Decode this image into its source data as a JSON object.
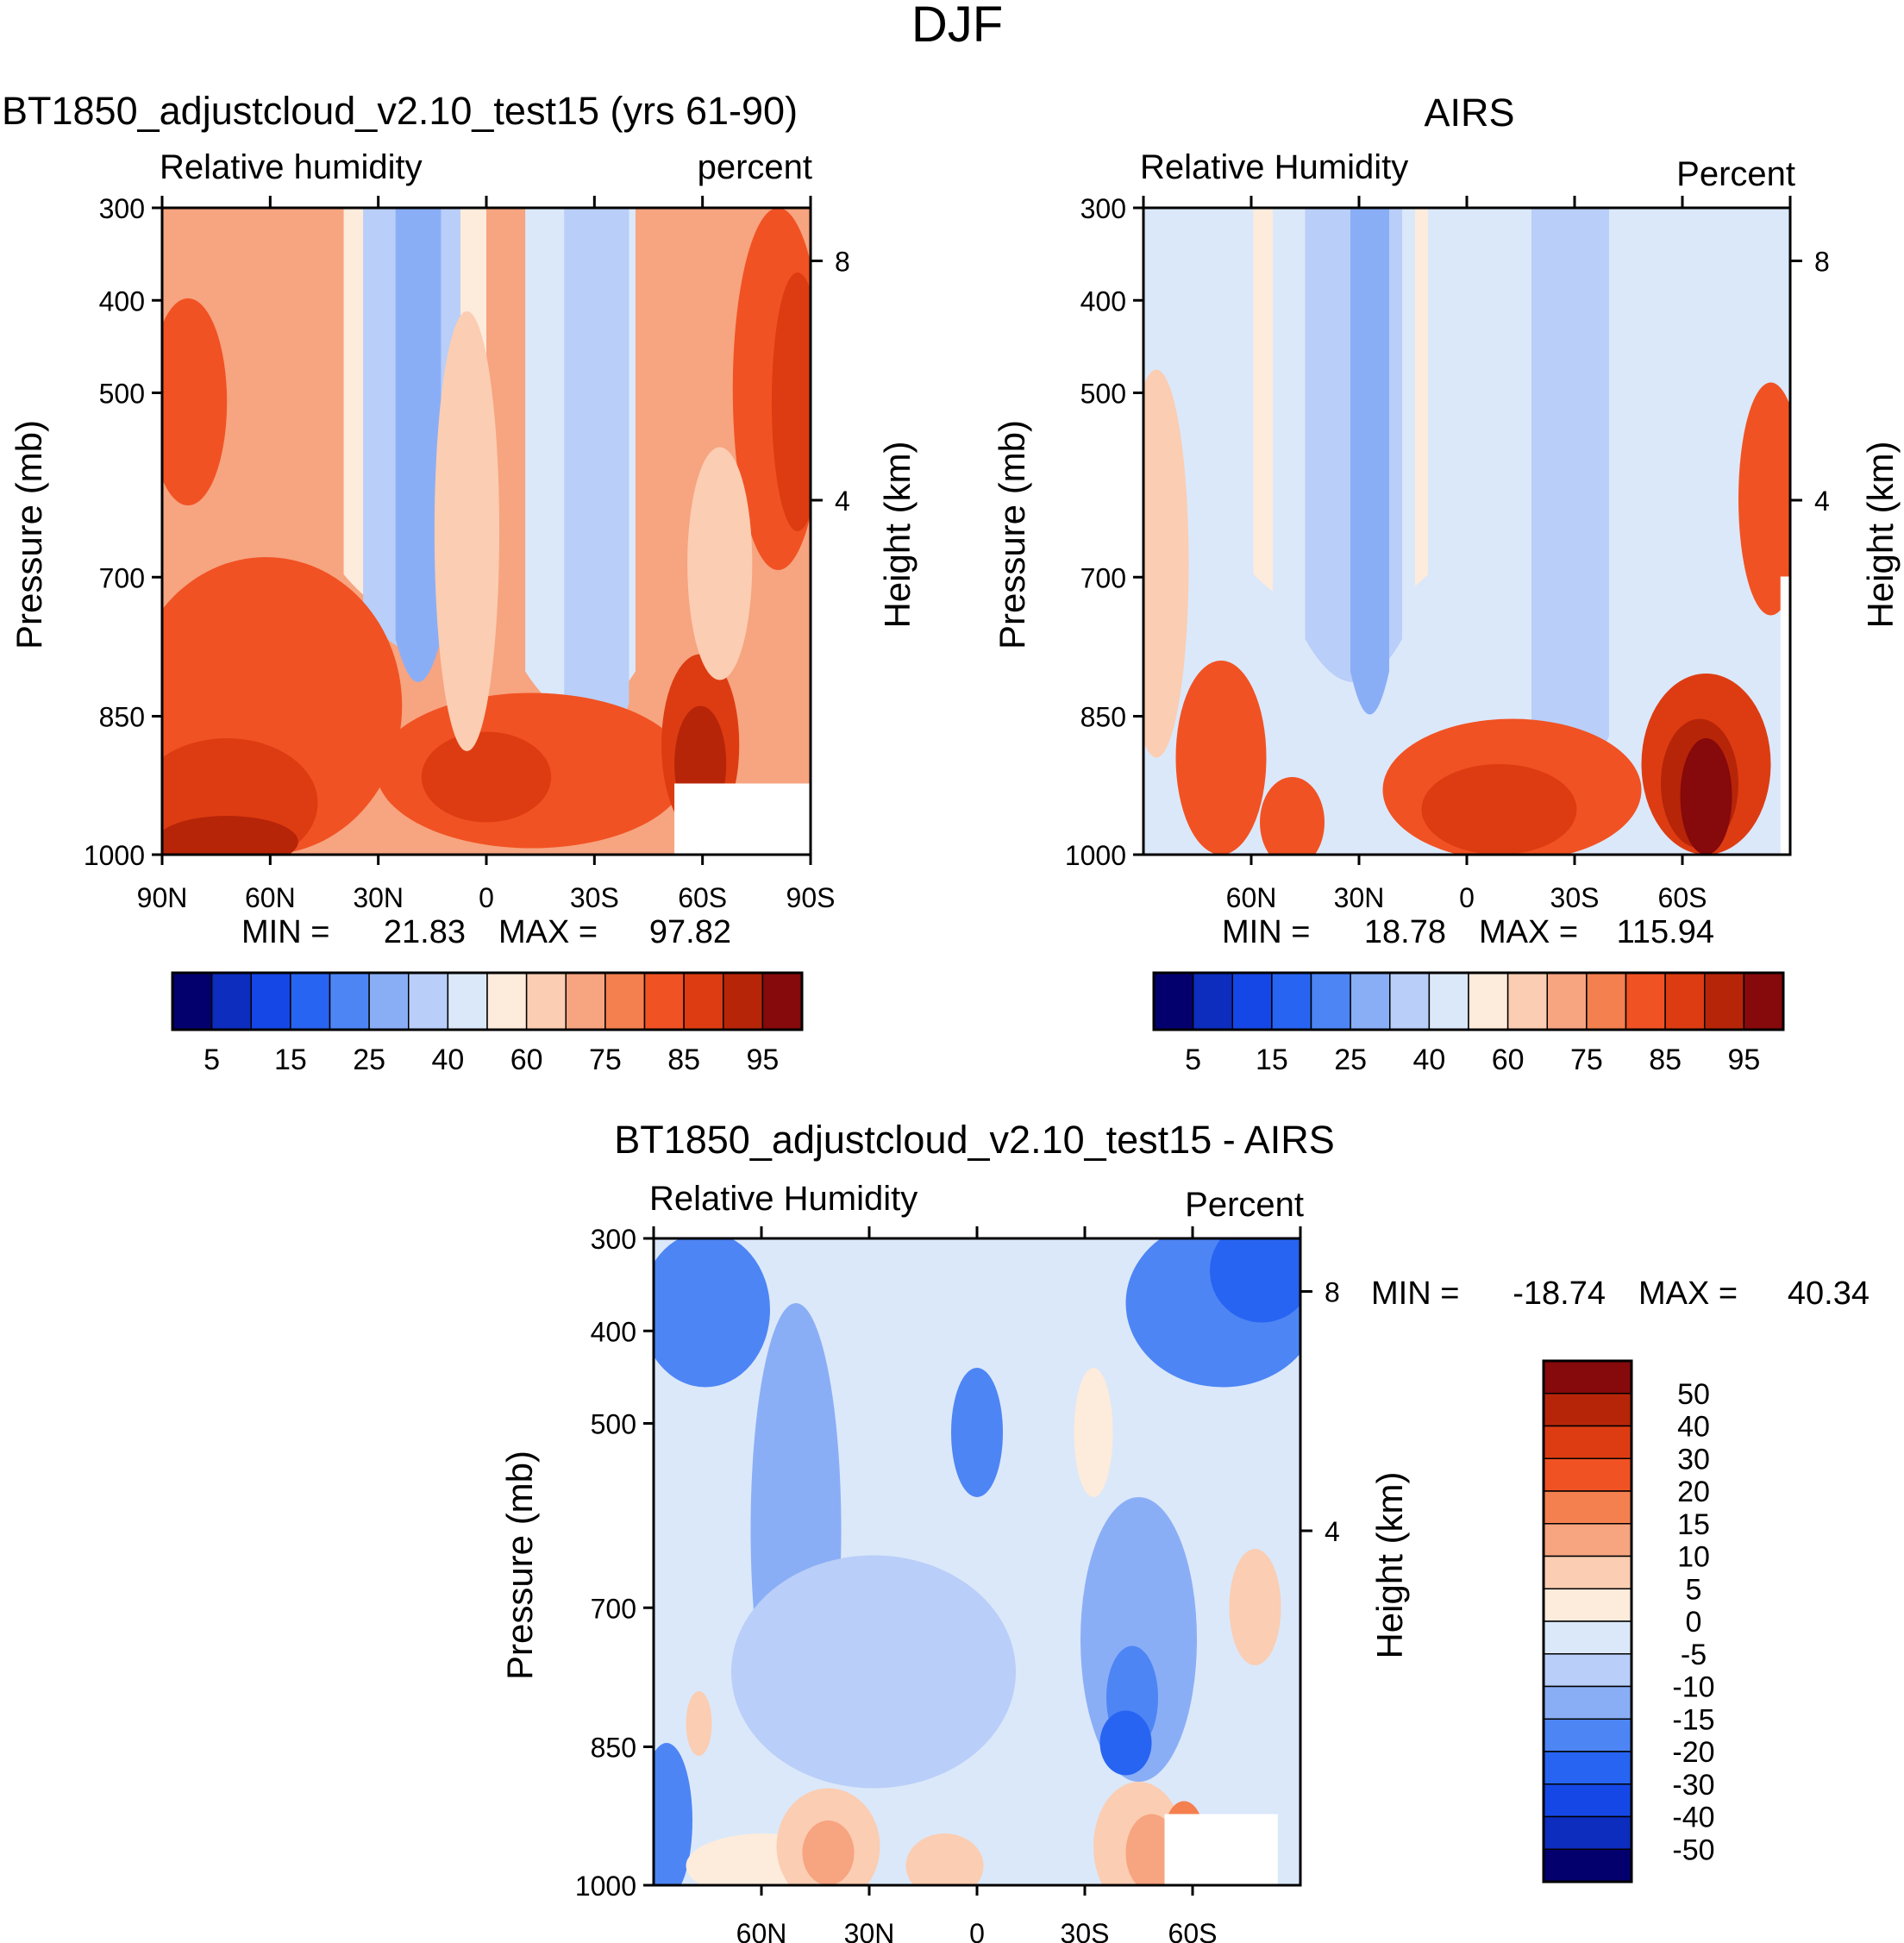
{
  "figure": {
    "title": "DJF"
  },
  "chart_data": [
    {
      "type": "heatmap",
      "panel": "model",
      "title": "BT1850_adjustcloud_v2.10_test15 (yrs 61-90)",
      "left_label": "Relative humidity",
      "right_label": "percent",
      "ylabel": "Pressure (mb)",
      "y2label": "Height (km)",
      "yticks": [
        "300",
        "400",
        "500",
        "700",
        "850",
        "1000"
      ],
      "y2ticks": [
        "8",
        "4"
      ],
      "xticks": [
        "90N",
        "60N",
        "30N",
        "0",
        "30S",
        "60S",
        "90S"
      ],
      "ylim": [
        1000,
        300
      ],
      "min_label": "MIN =",
      "min_value": "21.83",
      "max_label": "MAX =",
      "max_value": "97.82",
      "colorbar": {
        "colors": [
          "#03006e",
          "#0c2dbd",
          "#1547e6",
          "#2864f2",
          "#4d85f5",
          "#8aaef6",
          "#b9cef8",
          "#dbe8fa",
          "#fdebdb",
          "#fbcdb2",
          "#f7a480",
          "#f47f4f",
          "#f15223",
          "#dd3c12",
          "#b72509",
          "#86090b"
        ],
        "labels": [
          "5",
          "15",
          "25",
          "40",
          "60",
          "75",
          "85",
          "95"
        ]
      },
      "blobs": [
        {
          "x": 0.16,
          "y": 0.77,
          "rx": 0.21,
          "ry": 0.23,
          "level": 12
        },
        {
          "x": 0.1,
          "y": 0.92,
          "rx": 0.14,
          "ry": 0.1,
          "level": 13
        },
        {
          "x": 0.1,
          "y": 0.98,
          "rx": 0.11,
          "ry": 0.04,
          "level": 14
        },
        {
          "x": 0.04,
          "y": 0.3,
          "rx": 0.06,
          "ry": 0.16,
          "level": 12
        },
        {
          "x": 0.57,
          "y": 0.87,
          "rx": 0.24,
          "ry": 0.12,
          "level": 12
        },
        {
          "x": 0.5,
          "y": 0.88,
          "rx": 0.1,
          "ry": 0.07,
          "level": 13
        },
        {
          "x": 0.83,
          "y": 0.83,
          "rx": 0.06,
          "ry": 0.14,
          "level": 13
        },
        {
          "x": 0.83,
          "y": 0.86,
          "rx": 0.04,
          "ry": 0.09,
          "level": 14
        },
        {
          "x": 0.95,
          "y": 0.28,
          "rx": 0.07,
          "ry": 0.28,
          "level": 12
        },
        {
          "x": 0.98,
          "y": 0.3,
          "rx": 0.04,
          "ry": 0.2,
          "level": 13
        },
        {
          "x": 0.47,
          "y": 0.5,
          "rx": 0.05,
          "ry": 0.34,
          "level": 9
        },
        {
          "x": 0.86,
          "y": 0.55,
          "rx": 0.05,
          "ry": 0.18,
          "level": 9
        }
      ],
      "masks": [
        {
          "x0": 0.79,
          "x1": 1.0,
          "y0": 0.89,
          "y1": 1.0
        }
      ]
    },
    {
      "type": "heatmap",
      "panel": "obs",
      "title": "AIRS",
      "left_label": "Relative Humidity",
      "right_label": "Percent",
      "ylabel": "Pressure (mb)",
      "y2label": "Height (km)",
      "yticks": [
        "300",
        "400",
        "500",
        "700",
        "850",
        "1000"
      ],
      "y2ticks": [
        "8",
        "4"
      ],
      "xticks": [
        "60N",
        "30N",
        "0",
        "30S",
        "60S"
      ],
      "ylim": [
        1000,
        300
      ],
      "min_label": "MIN =",
      "min_value": "18.78",
      "max_label": "MAX =",
      "max_value": "115.94",
      "colorbar": {
        "colors": [
          "#03006e",
          "#0c2dbd",
          "#1547e6",
          "#2864f2",
          "#4d85f5",
          "#8aaef6",
          "#b9cef8",
          "#dbe8fa",
          "#fdebdb",
          "#fbcdb2",
          "#f7a480",
          "#f47f4f",
          "#f15223",
          "#dd3c12",
          "#b72509",
          "#86090b"
        ],
        "labels": [
          "5",
          "15",
          "25",
          "40",
          "60",
          "75",
          "85",
          "95"
        ]
      },
      "blobs": [
        {
          "x": 0.12,
          "y": 0.85,
          "rx": 0.07,
          "ry": 0.15,
          "level": 12
        },
        {
          "x": 0.23,
          "y": 0.95,
          "rx": 0.05,
          "ry": 0.07,
          "level": 12
        },
        {
          "x": 0.57,
          "y": 0.9,
          "rx": 0.2,
          "ry": 0.11,
          "level": 12
        },
        {
          "x": 0.55,
          "y": 0.93,
          "rx": 0.12,
          "ry": 0.07,
          "level": 13
        },
        {
          "x": 0.87,
          "y": 0.86,
          "rx": 0.1,
          "ry": 0.14,
          "level": 13
        },
        {
          "x": 0.86,
          "y": 0.89,
          "rx": 0.06,
          "ry": 0.1,
          "level": 14
        },
        {
          "x": 0.87,
          "y": 0.91,
          "rx": 0.04,
          "ry": 0.09,
          "level": 15
        },
        {
          "x": 0.97,
          "y": 0.45,
          "rx": 0.05,
          "ry": 0.18,
          "level": 12
        },
        {
          "x": 0.02,
          "y": 0.55,
          "rx": 0.05,
          "ry": 0.3,
          "level": 9
        }
      ],
      "masks": [
        {
          "x0": 0.985,
          "x1": 1.0,
          "y0": 0.57,
          "y1": 1.0
        }
      ]
    },
    {
      "type": "heatmap",
      "panel": "difference",
      "title": "BT1850_adjustcloud_v2.10_test15 - AIRS",
      "left_label": "Relative Humidity",
      "right_label": "Percent",
      "ylabel": "Pressure (mb)",
      "y2label": "Height (km)",
      "yticks": [
        "300",
        "400",
        "500",
        "700",
        "850",
        "1000"
      ],
      "y2ticks": [
        "8",
        "4"
      ],
      "xticks": [
        "60N",
        "30N",
        "0",
        "30S",
        "60S"
      ],
      "ylim": [
        1000,
        300
      ],
      "min_label": "MIN =",
      "min_value": "-18.74",
      "max_label": "MAX =",
      "max_value": "40.34",
      "colorbar": {
        "colors": [
          "#86090b",
          "#b72509",
          "#dd3c12",
          "#f15223",
          "#f47f4f",
          "#f7a480",
          "#fbcdb2",
          "#fdebdb",
          "#dbe8fa",
          "#b9cef8",
          "#8aaef6",
          "#4d85f5",
          "#2864f2",
          "#1547e6",
          "#0c2dbd",
          "#03006e"
        ],
        "labels": [
          "50",
          "40",
          "30",
          "20",
          "15",
          "10",
          "5",
          "0",
          "-5",
          "-10",
          "-15",
          "-20",
          "-30",
          "-40",
          "-50"
        ]
      },
      "blobs": [
        {
          "x": 0.08,
          "y": 0.11,
          "rx": 0.1,
          "ry": 0.12,
          "level": 11
        },
        {
          "x": 0.88,
          "y": 0.1,
          "rx": 0.15,
          "ry": 0.13,
          "level": 11
        },
        {
          "x": 0.94,
          "y": 0.05,
          "rx": 0.08,
          "ry": 0.08,
          "level": 12
        },
        {
          "x": 0.02,
          "y": 0.9,
          "rx": 0.04,
          "ry": 0.12,
          "level": 11
        },
        {
          "x": 0.22,
          "y": 0.45,
          "rx": 0.07,
          "ry": 0.35,
          "level": 10
        },
        {
          "x": 0.5,
          "y": 0.3,
          "rx": 0.04,
          "ry": 0.1,
          "level": 11
        },
        {
          "x": 0.75,
          "y": 0.62,
          "rx": 0.09,
          "ry": 0.22,
          "level": 10
        },
        {
          "x": 0.74,
          "y": 0.71,
          "rx": 0.04,
          "ry": 0.08,
          "level": 11
        },
        {
          "x": 0.73,
          "y": 0.78,
          "rx": 0.04,
          "ry": 0.05,
          "level": 12
        },
        {
          "x": 0.34,
          "y": 0.67,
          "rx": 0.22,
          "ry": 0.18,
          "level": 9
        },
        {
          "x": 0.17,
          "y": 0.97,
          "rx": 0.12,
          "ry": 0.05,
          "level": 7
        },
        {
          "x": 0.27,
          "y": 0.94,
          "rx": 0.08,
          "ry": 0.09,
          "level": 6
        },
        {
          "x": 0.27,
          "y": 0.95,
          "rx": 0.04,
          "ry": 0.05,
          "level": 5
        },
        {
          "x": 0.45,
          "y": 0.97,
          "rx": 0.06,
          "ry": 0.05,
          "level": 6
        },
        {
          "x": 0.75,
          "y": 0.94,
          "rx": 0.07,
          "ry": 0.1,
          "level": 6
        },
        {
          "x": 0.77,
          "y": 0.95,
          "rx": 0.04,
          "ry": 0.06,
          "level": 5
        },
        {
          "x": 0.82,
          "y": 0.92,
          "rx": 0.03,
          "ry": 0.05,
          "level": 4
        },
        {
          "x": 0.93,
          "y": 0.57,
          "rx": 0.04,
          "ry": 0.09,
          "level": 6
        },
        {
          "x": 0.68,
          "y": 0.3,
          "rx": 0.03,
          "ry": 0.1,
          "level": 7
        },
        {
          "x": 0.07,
          "y": 0.75,
          "rx": 0.02,
          "ry": 0.05,
          "level": 6
        }
      ],
      "masks": [
        {
          "x0": 0.79,
          "x1": 0.965,
          "y0": 0.89,
          "y1": 1.0
        }
      ]
    }
  ]
}
